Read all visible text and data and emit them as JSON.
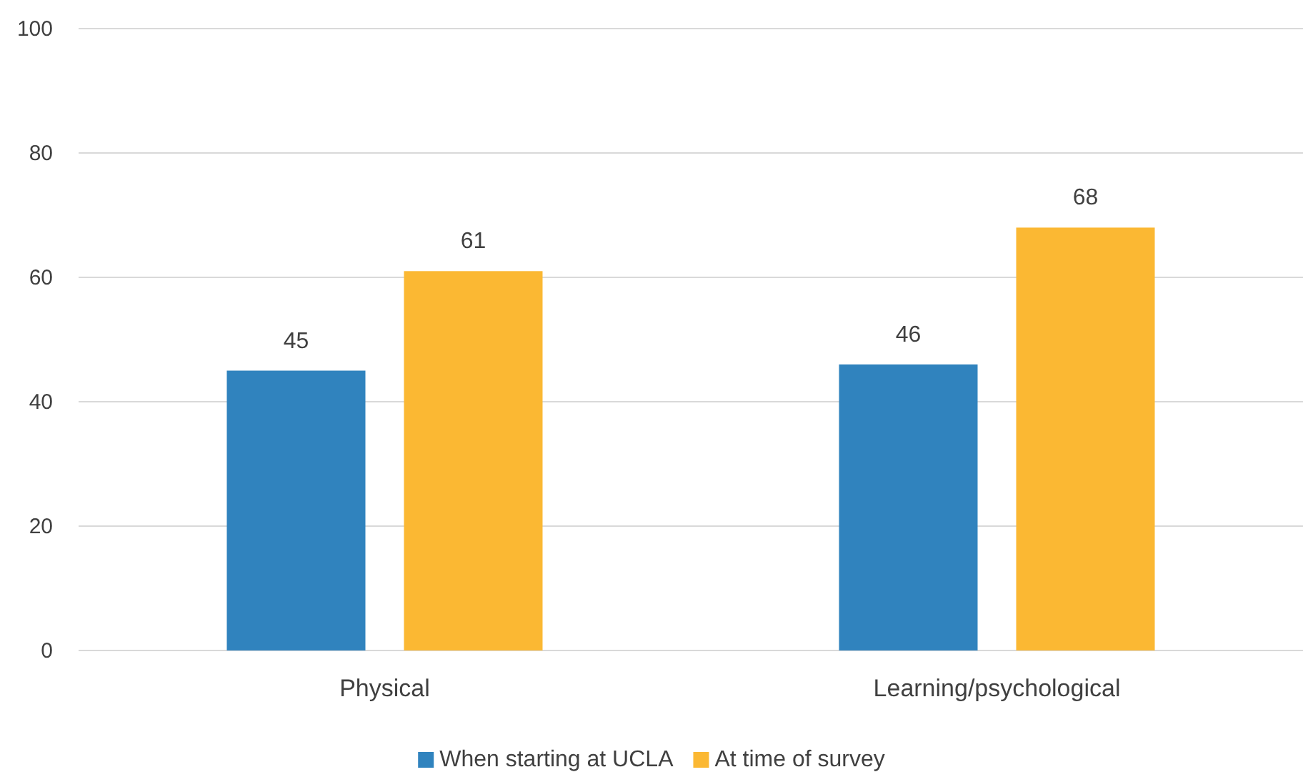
{
  "chart_data": {
    "type": "bar",
    "categories": [
      "Physical",
      "Learning/psychological"
    ],
    "series": [
      {
        "name": "When starting at UCLA",
        "color": "#3083be",
        "values": [
          45,
          46
        ]
      },
      {
        "name": "At time of survey",
        "color": "#fbb833",
        "values": [
          61,
          68
        ]
      }
    ],
    "ylim": [
      0,
      100
    ],
    "yticks": [
      0,
      20,
      40,
      60,
      80,
      100
    ],
    "grid": "y",
    "legend": "bottom",
    "data_labels": true
  }
}
